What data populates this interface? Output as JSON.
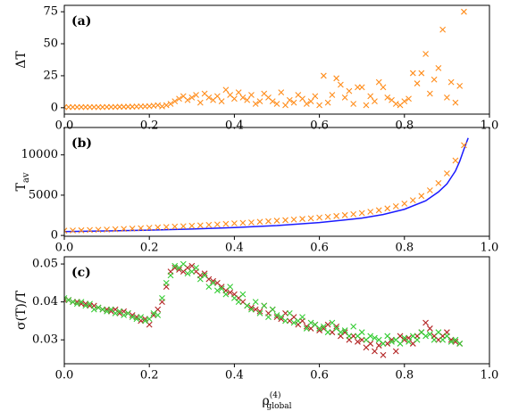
{
  "chart_data": [
    {
      "type": "scatter",
      "annotation": "(a)",
      "ylabel": [
        "ΔT"
      ],
      "xlim": [
        0,
        1
      ],
      "xticks": [
        {
          "value": 0,
          "label": "0.0"
        },
        0.2,
        0.4,
        0.6,
        0.8,
        {
          "value": 1,
          "label": "1.0"
        }
      ],
      "ylim": [
        -5,
        80
      ],
      "yticks": [
        0,
        25,
        50,
        75
      ],
      "grid": false,
      "series": [
        {
          "color": "#ff8c1a",
          "x": [
            0,
            0.01,
            0.02,
            0.03,
            0.04,
            0.05,
            0.06,
            0.07,
            0.08,
            0.09,
            0.1,
            0.11,
            0.12,
            0.13,
            0.14,
            0.15,
            0.16,
            0.17,
            0.18,
            0.19,
            0.2,
            0.21,
            0.22,
            0.23,
            0.24,
            0.25,
            0.26,
            0.27,
            0.28,
            0.29,
            0.3,
            0.31,
            0.32,
            0.33,
            0.34,
            0.35,
            0.36,
            0.37,
            0.38,
            0.39,
            0.4,
            0.41,
            0.42,
            0.43,
            0.44,
            0.45,
            0.46,
            0.47,
            0.48,
            0.49,
            0.5,
            0.51,
            0.52,
            0.53,
            0.54,
            0.55,
            0.56,
            0.57,
            0.58,
            0.59,
            0.6,
            0.61,
            0.62,
            0.63,
            0.64,
            0.65,
            0.66,
            0.67,
            0.68,
            0.69,
            0.7,
            0.71,
            0.72,
            0.73,
            0.74,
            0.75,
            0.76,
            0.77,
            0.78,
            0.79,
            0.8,
            0.81,
            0.82,
            0.83,
            0.84,
            0.85,
            0.86,
            0.87,
            0.88,
            0.89,
            0.9,
            0.91,
            0.92,
            0.93,
            0.94
          ],
          "values": [
            0.5,
            0.5,
            0.5,
            0.5,
            0.5,
            0.5,
            0.5,
            0.5,
            0.5,
            0.5,
            0.6,
            0.6,
            0.6,
            0.7,
            0.7,
            0.8,
            0.8,
            0.9,
            1,
            1,
            1.2,
            1.5,
            2,
            1,
            2,
            3,
            5,
            7,
            9,
            6,
            8,
            10,
            4,
            11,
            8,
            6,
            9,
            5,
            14,
            10,
            7,
            12,
            8,
            6,
            10,
            3,
            5,
            11,
            8,
            5,
            3,
            12,
            2,
            6,
            4,
            10,
            7,
            3,
            5,
            9,
            2,
            25,
            4,
            10,
            23,
            18,
            8,
            13,
            3,
            16,
            16,
            2,
            9,
            5,
            20,
            16,
            8,
            6,
            3,
            2,
            5,
            7,
            27,
            19,
            27,
            42,
            11,
            22,
            31,
            61,
            8,
            20,
            4,
            17,
            75
          ]
        }
      ]
    },
    {
      "type": "scatter",
      "annotation": "(b)",
      "ylabel": [
        "T",
        "av"
      ],
      "xlim": [
        0,
        1
      ],
      "xticks": [
        {
          "value": 0,
          "label": "0.0"
        },
        0.2,
        0.4,
        0.6,
        0.8,
        {
          "value": 1,
          "label": "1.0"
        }
      ],
      "ylim": [
        -100,
        13400
      ],
      "yticks": [
        0,
        5000,
        10000
      ],
      "grid": false,
      "series": [
        {
          "type": "line",
          "color": "#1a1aff",
          "x": [
            0,
            0.1,
            0.2,
            0.3,
            0.4,
            0.5,
            0.6,
            0.7,
            0.75,
            0.8,
            0.85,
            0.88,
            0.9,
            0.92,
            0.93,
            0.94,
            0.95
          ],
          "values": [
            480,
            560,
            660,
            800,
            980,
            1230,
            1600,
            2150,
            2600,
            3250,
            4300,
            5400,
            6400,
            8000,
            9200,
            10700,
            12100
          ]
        },
        {
          "color": "#ff8c1a",
          "x": [
            0,
            0.02,
            0.04,
            0.06,
            0.08,
            0.1,
            0.12,
            0.14,
            0.16,
            0.18,
            0.2,
            0.22,
            0.24,
            0.26,
            0.28,
            0.3,
            0.32,
            0.34,
            0.36,
            0.38,
            0.4,
            0.42,
            0.44,
            0.46,
            0.48,
            0.5,
            0.52,
            0.54,
            0.56,
            0.58,
            0.6,
            0.62,
            0.64,
            0.66,
            0.68,
            0.7,
            0.72,
            0.74,
            0.76,
            0.78,
            0.8,
            0.82,
            0.84,
            0.86,
            0.88,
            0.9,
            0.92,
            0.94
          ],
          "values": [
            600,
            620,
            640,
            670,
            700,
            730,
            770,
            810,
            850,
            900,
            950,
            1000,
            1050,
            1100,
            1150,
            1200,
            1250,
            1310,
            1370,
            1430,
            1500,
            1560,
            1620,
            1690,
            1760,
            1830,
            1900,
            1970,
            2050,
            2130,
            2220,
            2310,
            2410,
            2520,
            2640,
            2780,
            2940,
            3130,
            3350,
            3620,
            3950,
            4370,
            4900,
            5600,
            6500,
            7700,
            9300,
            11200
          ]
        }
      ]
    },
    {
      "type": "scatter",
      "annotation": "(c)",
      "ylabel": [
        "σ(T)/T"
      ],
      "xlabel": [
        "ρ",
        "(4)",
        "global"
      ],
      "xlim": [
        0,
        1
      ],
      "xticks": [
        {
          "value": 0,
          "label": "0.0"
        },
        0.2,
        0.4,
        0.6,
        0.8,
        {
          "value": 1,
          "label": "1.0"
        }
      ],
      "ylim": [
        0.0237,
        0.0519
      ],
      "yticks": [
        0.03,
        0.04,
        0.05
      ],
      "grid": false,
      "series": [
        {
          "color": "#b22222",
          "x": [
            0,
            0.01,
            0.02,
            0.03,
            0.04,
            0.05,
            0.06,
            0.07,
            0.08,
            0.09,
            0.1,
            0.11,
            0.12,
            0.13,
            0.14,
            0.15,
            0.16,
            0.17,
            0.18,
            0.19,
            0.2,
            0.21,
            0.22,
            0.23,
            0.24,
            0.25,
            0.26,
            0.27,
            0.28,
            0.29,
            0.3,
            0.31,
            0.32,
            0.33,
            0.34,
            0.35,
            0.36,
            0.37,
            0.38,
            0.39,
            0.4,
            0.41,
            0.42,
            0.43,
            0.44,
            0.45,
            0.46,
            0.47,
            0.48,
            0.49,
            0.5,
            0.51,
            0.52,
            0.53,
            0.54,
            0.55,
            0.56,
            0.57,
            0.58,
            0.59,
            0.6,
            0.61,
            0.62,
            0.63,
            0.64,
            0.65,
            0.66,
            0.67,
            0.68,
            0.69,
            0.7,
            0.71,
            0.72,
            0.73,
            0.74,
            0.75,
            0.76,
            0.77,
            0.78,
            0.79,
            0.8,
            0.81,
            0.82,
            0.83,
            0.84,
            0.85,
            0.86,
            0.87,
            0.88,
            0.89,
            0.9,
            0.91,
            0.92,
            0.93
          ],
          "values": [
            0.0405,
            0.0405,
            0.04,
            0.04,
            0.0395,
            0.0395,
            0.039,
            0.039,
            0.0385,
            0.038,
            0.038,
            0.0375,
            0.038,
            0.037,
            0.0375,
            0.037,
            0.0365,
            0.036,
            0.035,
            0.0355,
            0.034,
            0.0365,
            0.038,
            0.04,
            0.044,
            0.048,
            0.049,
            0.0485,
            0.048,
            0.049,
            0.0495,
            0.048,
            0.047,
            0.0475,
            0.046,
            0.0455,
            0.045,
            0.044,
            0.043,
            0.0425,
            0.042,
            0.041,
            0.04,
            0.039,
            0.0385,
            0.038,
            0.0375,
            0.039,
            0.037,
            0.038,
            0.036,
            0.0355,
            0.037,
            0.035,
            0.036,
            0.034,
            0.035,
            0.0335,
            0.033,
            0.034,
            0.0325,
            0.033,
            0.034,
            0.032,
            0.0335,
            0.031,
            0.032,
            0.03,
            0.031,
            0.0295,
            0.03,
            0.028,
            0.029,
            0.027,
            0.0285,
            0.026,
            0.029,
            0.03,
            0.027,
            0.031,
            0.03,
            0.0305,
            0.029,
            0.031,
            0.032,
            0.0345,
            0.033,
            0.031,
            0.03,
            0.031,
            0.032,
            0.03,
            0.0295,
            0.029
          ]
        },
        {
          "color": "#33cc33",
          "x": [
            0,
            0.01,
            0.02,
            0.03,
            0.04,
            0.05,
            0.06,
            0.07,
            0.08,
            0.09,
            0.1,
            0.11,
            0.12,
            0.13,
            0.14,
            0.15,
            0.16,
            0.17,
            0.18,
            0.19,
            0.2,
            0.21,
            0.22,
            0.23,
            0.24,
            0.25,
            0.26,
            0.27,
            0.28,
            0.29,
            0.3,
            0.31,
            0.32,
            0.33,
            0.34,
            0.35,
            0.36,
            0.37,
            0.38,
            0.39,
            0.4,
            0.41,
            0.42,
            0.43,
            0.44,
            0.45,
            0.46,
            0.47,
            0.48,
            0.49,
            0.5,
            0.51,
            0.52,
            0.53,
            0.54,
            0.55,
            0.56,
            0.57,
            0.58,
            0.59,
            0.6,
            0.61,
            0.62,
            0.63,
            0.64,
            0.65,
            0.66,
            0.67,
            0.68,
            0.69,
            0.7,
            0.71,
            0.72,
            0.73,
            0.74,
            0.75,
            0.76,
            0.77,
            0.78,
            0.79,
            0.8,
            0.81,
            0.82,
            0.83,
            0.84,
            0.85,
            0.86,
            0.87,
            0.88,
            0.89,
            0.9,
            0.91,
            0.92,
            0.93
          ],
          "values": [
            0.041,
            0.0405,
            0.04,
            0.0395,
            0.04,
            0.039,
            0.0395,
            0.038,
            0.0385,
            0.038,
            0.0375,
            0.038,
            0.037,
            0.0375,
            0.0365,
            0.037,
            0.036,
            0.0355,
            0.036,
            0.035,
            0.0355,
            0.037,
            0.0365,
            0.041,
            0.045,
            0.047,
            0.0495,
            0.049,
            0.05,
            0.0475,
            0.048,
            0.049,
            0.046,
            0.047,
            0.044,
            0.045,
            0.043,
            0.0435,
            0.042,
            0.044,
            0.041,
            0.04,
            0.042,
            0.039,
            0.038,
            0.04,
            0.037,
            0.039,
            0.036,
            0.038,
            0.0365,
            0.036,
            0.035,
            0.037,
            0.0345,
            0.035,
            0.036,
            0.033,
            0.0345,
            0.034,
            0.033,
            0.0335,
            0.032,
            0.0345,
            0.033,
            0.032,
            0.0325,
            0.031,
            0.0335,
            0.031,
            0.032,
            0.03,
            0.031,
            0.0305,
            0.03,
            0.029,
            0.031,
            0.0295,
            0.03,
            0.029,
            0.0305,
            0.0295,
            0.031,
            0.03,
            0.032,
            0.031,
            0.0315,
            0.03,
            0.032,
            0.03,
            0.031,
            0.0295,
            0.03,
            0.029
          ]
        }
      ]
    }
  ]
}
